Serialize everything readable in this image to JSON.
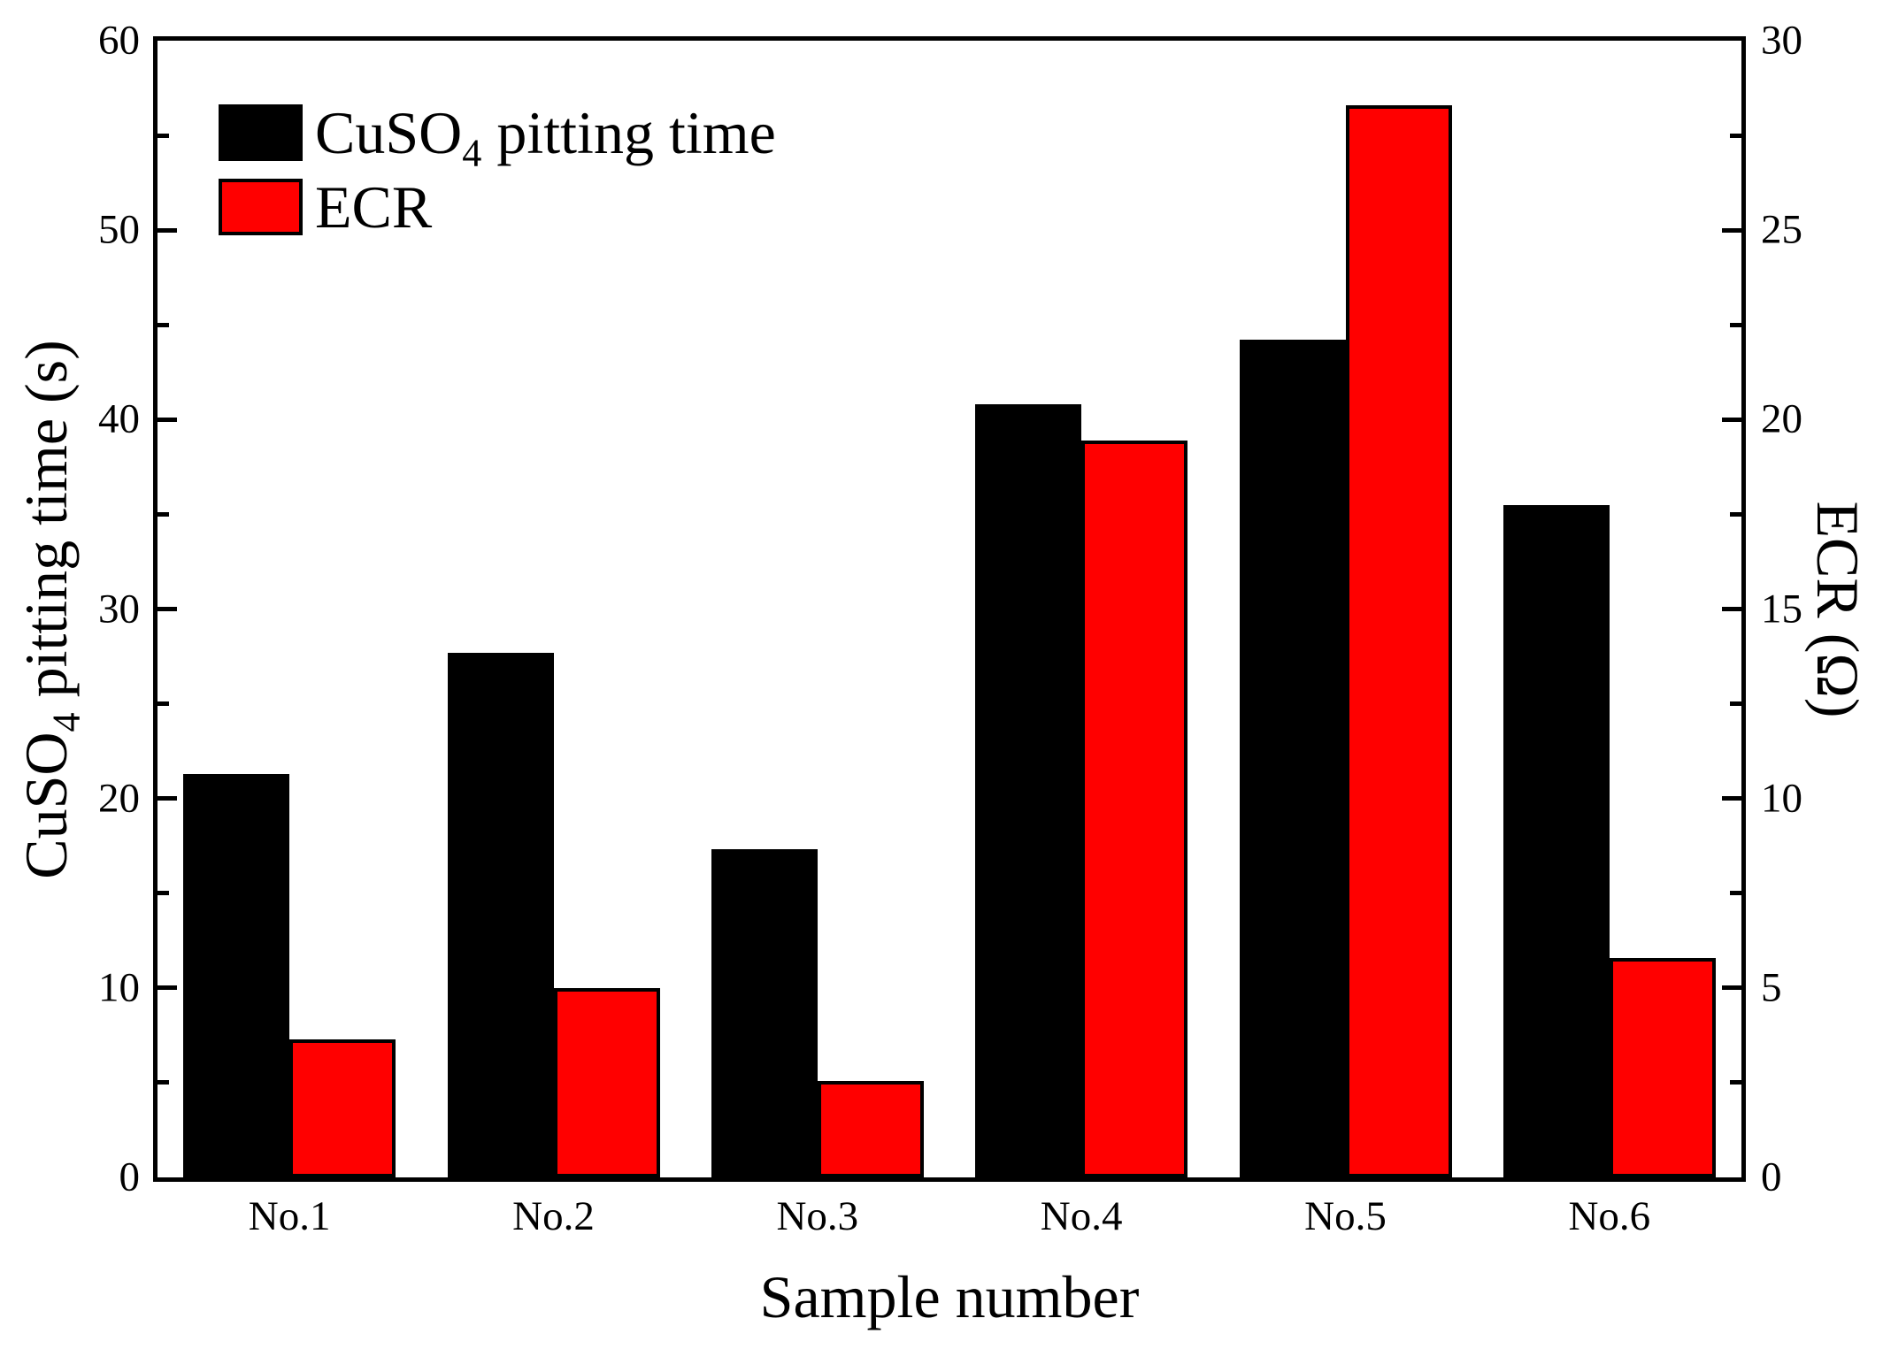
{
  "chart_data": {
    "type": "bar",
    "categories": [
      "No.1",
      "No.2",
      "No.3",
      "No.4",
      "No.5",
      "No.6"
    ],
    "series": [
      {
        "name": "CuSO4 pitting time",
        "axis": "left",
        "color": "#000000",
        "values": [
          21.3,
          27.7,
          17.3,
          40.8,
          44.2,
          35.5
        ]
      },
      {
        "name": "ECR",
        "axis": "right",
        "color": "#ff0000",
        "values": [
          3.65,
          5.0,
          2.55,
          19.45,
          28.3,
          5.8
        ]
      }
    ],
    "xlabel": "Sample number",
    "left_axis": {
      "label": "CuSO4 pitting time (s)",
      "min": 0,
      "max": 60,
      "major_step": 10,
      "minor_step": 5,
      "tick_labels": [
        "0",
        "10",
        "20",
        "30",
        "40",
        "50",
        "60"
      ]
    },
    "right_axis": {
      "label": "ECR (Ω)",
      "min": 0,
      "max": 30,
      "major_step": 5,
      "minor_step": 2.5,
      "tick_labels": [
        "0",
        "5",
        "10",
        "15",
        "20",
        "25",
        "30"
      ]
    },
    "legend": {
      "position": "top-left",
      "entries": [
        "CuSO4 pitting time",
        "ECR"
      ]
    },
    "grid": false,
    "background": "#ffffff",
    "bar_border_color": "#000000"
  }
}
